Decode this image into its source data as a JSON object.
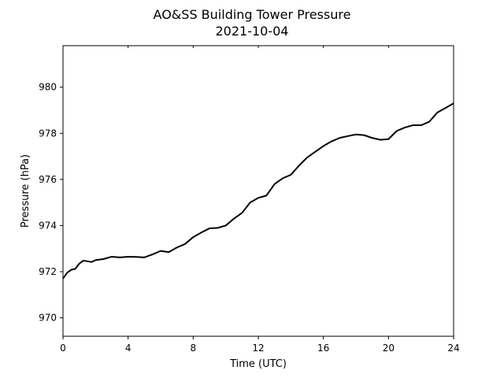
{
  "chart_data": {
    "type": "line",
    "title": "AO&SS Building Tower Pressure",
    "subtitle": "2021-10-04",
    "xlabel": "Time (UTC)",
    "ylabel": "Pressure (hPa)",
    "xlim": [
      0,
      24
    ],
    "ylim": [
      969.2,
      981.8
    ],
    "xticks": [
      0,
      4,
      8,
      12,
      16,
      20,
      24
    ],
    "yticks": [
      970,
      972,
      974,
      976,
      978,
      980
    ],
    "grid": false,
    "line_color": "#000000",
    "series": [
      {
        "x": [
          0,
          0.25,
          0.5,
          0.75,
          1.0,
          1.25,
          1.5,
          1.75,
          2.0,
          2.5,
          3.0,
          3.5,
          4.0,
          4.5,
          5.0,
          5.5,
          6.0,
          6.5,
          7.0,
          7.5,
          8.0,
          8.5,
          9.0,
          9.5,
          10.0,
          10.5,
          11.0,
          11.5,
          12.0,
          12.5,
          13.0,
          13.5,
          14.0,
          14.5,
          15.0,
          15.5,
          16.0,
          16.5,
          17.0,
          17.5,
          18.0,
          18.5,
          19.0,
          19.5,
          20.0,
          20.5,
          21.0,
          21.5,
          22.0,
          22.5,
          23.0,
          23.5,
          24.0
        ],
        "values": [
          971.7,
          971.95,
          972.08,
          972.12,
          972.35,
          972.48,
          972.45,
          972.42,
          972.5,
          972.55,
          972.65,
          972.62,
          972.65,
          972.64,
          972.62,
          972.75,
          972.9,
          972.85,
          973.05,
          973.2,
          973.5,
          973.7,
          973.88,
          973.9,
          974.0,
          974.3,
          974.55,
          975.0,
          975.2,
          975.3,
          975.8,
          976.05,
          976.2,
          976.6,
          976.95,
          977.2,
          977.45,
          977.65,
          977.8,
          977.88,
          977.95,
          977.92,
          977.8,
          977.72,
          977.75,
          978.1,
          978.25,
          978.35,
          978.35,
          978.5,
          978.9,
          979.1,
          979.3
        ]
      }
    ]
  }
}
